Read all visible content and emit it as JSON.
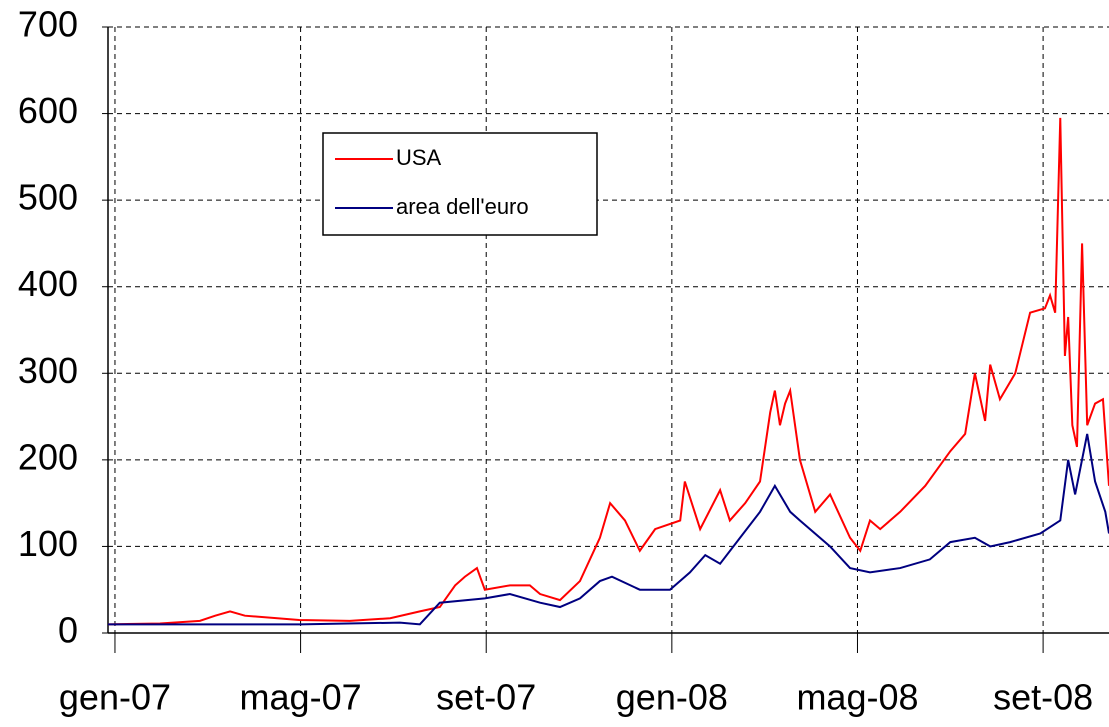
{
  "chart_data": {
    "type": "line",
    "xlim": [
      -0.15,
      21.42
    ],
    "ylim": [
      0,
      700
    ],
    "yticks": [
      0,
      100,
      200,
      300,
      400,
      500,
      600,
      700
    ],
    "xticks": [
      {
        "value": 0,
        "label": "gen-07"
      },
      {
        "value": 4,
        "label": "mag-07"
      },
      {
        "value": 8,
        "label": "set-07"
      },
      {
        "value": 12,
        "label": "gen-08"
      },
      {
        "value": 16,
        "label": "mag-08"
      },
      {
        "value": 20,
        "label": "set-08"
      }
    ],
    "grid": true,
    "legend": "upper left",
    "series": [
      {
        "name": "USA",
        "color": "#ff0000",
        "x": [
          -0.15,
          0.97,
          1.83,
          2.16,
          2.48,
          2.8,
          3.97,
          5.06,
          5.93,
          6.57,
          7.0,
          7.33,
          7.54,
          7.8,
          7.97,
          8.51,
          8.94,
          9.16,
          9.59,
          10.02,
          10.45,
          10.67,
          10.99,
          11.31,
          11.64,
          12.18,
          12.28,
          12.61,
          13.04,
          13.25,
          13.58,
          13.9,
          14.12,
          14.22,
          14.33,
          14.44,
          14.55,
          14.76,
          15.09,
          15.41,
          15.84,
          16.06,
          16.27,
          16.49,
          16.92,
          17.46,
          18.0,
          18.32,
          18.53,
          18.75,
          18.86,
          19.07,
          19.4,
          19.72,
          20.04,
          20.15,
          20.26,
          20.37,
          20.47,
          20.54,
          20.63,
          20.73,
          20.84,
          20.95,
          21.12,
          21.29,
          21.42
        ],
        "values": [
          10,
          11,
          14,
          20,
          25,
          20,
          15,
          14,
          17,
          25,
          30,
          55,
          65,
          75,
          50,
          55,
          55,
          45,
          38,
          60,
          110,
          150,
          130,
          95,
          120,
          130,
          175,
          120,
          165,
          130,
          150,
          175,
          255,
          280,
          240,
          265,
          280,
          200,
          140,
          160,
          110,
          95,
          130,
          120,
          140,
          170,
          210,
          230,
          300,
          245,
          310,
          270,
          300,
          370,
          375,
          390,
          370,
          595,
          320,
          365,
          240,
          215,
          450,
          240,
          265,
          270,
          170
        ]
      },
      {
        "name": "area dell'euro",
        "color": "#000080",
        "x": [
          -0.15,
          3.99,
          6.14,
          6.57,
          7.0,
          7.97,
          8.51,
          9.16,
          9.59,
          10.02,
          10.45,
          10.71,
          11.31,
          11.96,
          12.39,
          12.72,
          13.04,
          13.47,
          13.9,
          14.22,
          14.55,
          14.76,
          15.41,
          15.84,
          16.27,
          16.92,
          17.56,
          18.0,
          18.53,
          18.86,
          19.29,
          19.94,
          20.37,
          20.54,
          20.69,
          20.95,
          21.12,
          21.34,
          21.42
        ],
        "values": [
          10,
          10,
          12,
          10,
          35,
          40,
          45,
          35,
          30,
          40,
          60,
          65,
          50,
          50,
          70,
          90,
          80,
          110,
          140,
          170,
          140,
          130,
          100,
          75,
          70,
          75,
          85,
          105,
          110,
          100,
          105,
          115,
          130,
          200,
          160,
          230,
          175,
          140,
          115
        ]
      }
    ]
  }
}
